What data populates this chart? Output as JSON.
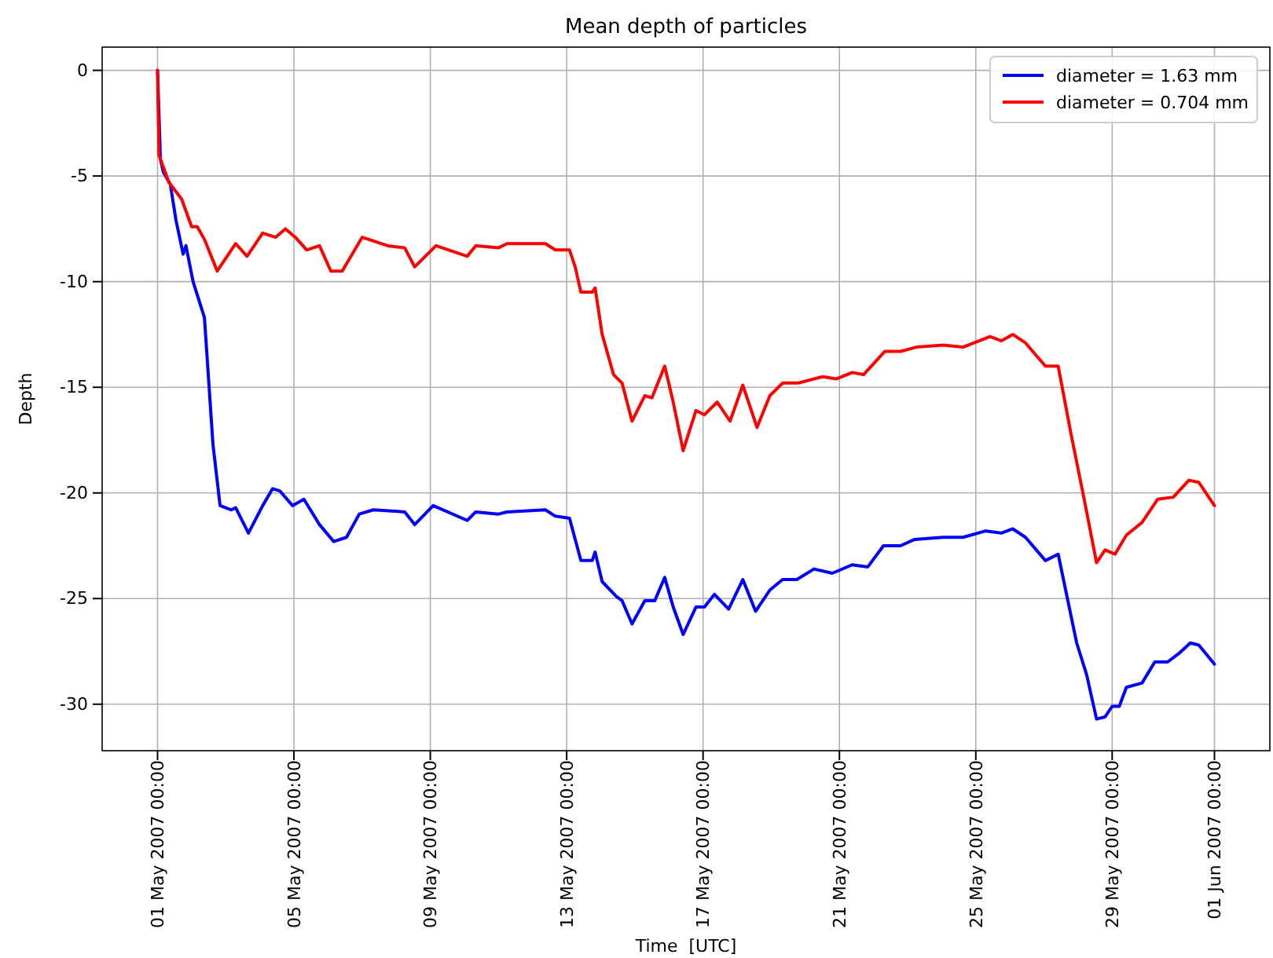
{
  "chart_data": {
    "type": "line",
    "title": "Mean depth of particles",
    "xlabel": "Time  [UTC]",
    "ylabel": "Depth",
    "xlim": [
      "2007-04-29T09:00",
      "2007-06-02T15:00"
    ],
    "ylim": [
      -32.2,
      1.1
    ],
    "xticks": [
      {
        "value": "2007-05-01",
        "label": "01 May 2007 00:00"
      },
      {
        "value": "2007-05-05",
        "label": "05 May 2007 00:00"
      },
      {
        "value": "2007-05-09",
        "label": "09 May 2007 00:00"
      },
      {
        "value": "2007-05-13",
        "label": "13 May 2007 00:00"
      },
      {
        "value": "2007-05-17",
        "label": "17 May 2007 00:00"
      },
      {
        "value": "2007-05-21",
        "label": "21 May 2007 00:00"
      },
      {
        "value": "2007-05-25",
        "label": "25 May 2007 00:00"
      },
      {
        "value": "2007-05-29",
        "label": "29 May 2007 00:00"
      },
      {
        "value": "2007-06-01",
        "label": "01 Jun 2007 00:00"
      }
    ],
    "yticks": [
      0,
      -5,
      -10,
      -15,
      -20,
      -25,
      -30
    ],
    "grid": true,
    "legend": "top right",
    "series": [
      {
        "name": "diameter = 1.63 mm",
        "color": "#0000ff",
        "x": [
          "2007-05-01T00:00",
          "2007-05-01T02:00",
          "2007-05-01T04:00",
          "2007-05-01T09:00",
          "2007-05-01T13:00",
          "2007-05-01T18:00",
          "2007-05-01T20:00",
          "2007-05-02T01:00",
          "2007-05-02T09:00",
          "2007-05-02T15:00",
          "2007-05-02T20:00",
          "2007-05-03T04:00",
          "2007-05-03T07:00",
          "2007-05-03T16:00",
          "2007-05-04T02:00",
          "2007-05-04T09:00",
          "2007-05-04T14:00",
          "2007-05-04T23:00",
          "2007-05-05T07:00",
          "2007-05-05T18:00",
          "2007-05-06T04:00",
          "2007-05-06T13:00",
          "2007-05-06T22:00",
          "2007-05-07T08:00",
          "2007-05-08T06:00",
          "2007-05-08T13:00",
          "2007-05-09T02:00",
          "2007-05-10T02:00",
          "2007-05-10T08:00",
          "2007-05-11T00:00",
          "2007-05-11T06:00",
          "2007-05-12T09:00",
          "2007-05-12T16:00",
          "2007-05-13T02:00",
          "2007-05-13T10:00",
          "2007-05-13T18:00",
          "2007-05-13T20:00",
          "2007-05-14T01:00",
          "2007-05-14T11:00",
          "2007-05-14T15:00",
          "2007-05-14T22:00",
          "2007-05-15T07:00",
          "2007-05-15T14:00",
          "2007-05-15T21:00",
          "2007-05-16T03:00",
          "2007-05-16T10:00",
          "2007-05-16T19:00",
          "2007-05-17T01:00",
          "2007-05-17T08:00",
          "2007-05-17T18:00",
          "2007-05-18T04:00",
          "2007-05-18T13:00",
          "2007-05-18T23:00",
          "2007-05-19T08:00",
          "2007-05-19T18:00",
          "2007-05-20T06:00",
          "2007-05-20T19:00",
          "2007-05-21T09:00",
          "2007-05-21T20:00",
          "2007-05-22T07:00",
          "2007-05-22T19:00",
          "2007-05-23T05:00",
          "2007-05-24T01:00",
          "2007-05-24T15:00",
          "2007-05-25T07:00",
          "2007-05-25T18:00",
          "2007-05-26T02:00",
          "2007-05-26T11:00",
          "2007-05-27T01:00",
          "2007-05-27T10:00",
          "2007-05-27T23:00",
          "2007-05-28T06:00",
          "2007-05-28T13:00",
          "2007-05-28T19:00",
          "2007-05-29T00:00",
          "2007-05-29T05:00",
          "2007-05-29T10:00",
          "2007-05-29T21:00",
          "2007-05-30T06:00",
          "2007-05-30T15:00",
          "2007-05-30T23:00",
          "2007-05-31T07:00",
          "2007-05-31T13:00",
          "2007-06-01T00:00"
        ],
        "values": [
          0,
          -4.2,
          -4.8,
          -5.4,
          -7.1,
          -8.7,
          -8.3,
          -10.0,
          -11.7,
          -17.7,
          -20.6,
          -20.8,
          -20.7,
          -21.9,
          -20.6,
          -19.8,
          -19.9,
          -20.6,
          -20.3,
          -21.5,
          -22.3,
          -22.1,
          -21.0,
          -20.8,
          -20.9,
          -21.5,
          -20.6,
          -21.3,
          -20.9,
          -21.0,
          -20.9,
          -20.8,
          -21.1,
          -21.2,
          -23.2,
          -23.2,
          -22.8,
          -24.2,
          -24.9,
          -25.1,
          -26.2,
          -25.1,
          -25.1,
          -24.0,
          -25.4,
          -26.7,
          -25.4,
          -25.4,
          -24.8,
          -25.5,
          -24.1,
          -25.6,
          -24.6,
          -24.1,
          -24.1,
          -23.6,
          -23.8,
          -23.4,
          -23.5,
          -22.5,
          -22.5,
          -22.2,
          -22.1,
          -22.1,
          -21.8,
          -21.9,
          -21.7,
          -22.1,
          -23.2,
          -22.9,
          -27.1,
          -28.6,
          -30.7,
          -30.6,
          -30.1,
          -30.1,
          -29.2,
          -29.0,
          -28.0,
          -28.0,
          -27.6,
          -27.1,
          -27.2,
          -28.1
        ]
      },
      {
        "name": "diameter = 0.704 mm",
        "color": "#ff0000",
        "x": [
          "2007-05-01T00:00",
          "2007-05-01T01:00",
          "2007-05-01T02:00",
          "2007-05-01T08:00",
          "2007-05-01T17:00",
          "2007-05-02T00:00",
          "2007-05-02T04:00",
          "2007-05-02T09:00",
          "2007-05-02T18:00",
          "2007-05-03T07:00",
          "2007-05-03T15:00",
          "2007-05-04T02:00",
          "2007-05-04T11:00",
          "2007-05-04T18:00",
          "2007-05-05T01:00",
          "2007-05-05T09:00",
          "2007-05-05T18:00",
          "2007-05-06T02:00",
          "2007-05-06T10:00",
          "2007-05-07T00:00",
          "2007-05-07T18:00",
          "2007-05-08T06:00",
          "2007-05-08T13:00",
          "2007-05-09T04:00",
          "2007-05-10T02:00",
          "2007-05-10T08:00",
          "2007-05-11T00:00",
          "2007-05-11T06:00",
          "2007-05-12T09:00",
          "2007-05-12T16:00",
          "2007-05-13T02:00",
          "2007-05-13T06:00",
          "2007-05-13T10:00",
          "2007-05-13T18:00",
          "2007-05-13T20:00",
          "2007-05-14T01:00",
          "2007-05-14T09:00",
          "2007-05-14T15:00",
          "2007-05-14T22:00",
          "2007-05-15T07:00",
          "2007-05-15T12:00",
          "2007-05-15T21:00",
          "2007-05-16T03:00",
          "2007-05-16T10:00",
          "2007-05-16T19:00",
          "2007-05-17T01:00",
          "2007-05-17T10:00",
          "2007-05-17T19:00",
          "2007-05-18T04:00",
          "2007-05-18T14:00",
          "2007-05-18T23:00",
          "2007-05-19T08:00",
          "2007-05-19T19:00",
          "2007-05-20T12:00",
          "2007-05-20T22:00",
          "2007-05-21T09:00",
          "2007-05-21T17:00",
          "2007-05-22T08:00",
          "2007-05-22T19:00",
          "2007-05-23T06:00",
          "2007-05-24T01:00",
          "2007-05-24T15:00",
          "2007-05-25T10:00",
          "2007-05-25T18:00",
          "2007-05-26T02:00",
          "2007-05-26T11:00",
          "2007-05-27T01:00",
          "2007-05-27T10:00",
          "2007-05-27T19:00",
          "2007-05-28T04:00",
          "2007-05-28T13:00",
          "2007-05-28T19:00",
          "2007-05-29T02:00",
          "2007-05-29T10:00",
          "2007-05-29T21:00",
          "2007-05-30T08:00",
          "2007-05-30T19:00",
          "2007-05-31T06:00",
          "2007-05-31T13:00",
          "2007-06-01T00:00"
        ],
        "values": [
          0,
          -4.0,
          -4.2,
          -5.3,
          -6.1,
          -7.4,
          -7.4,
          -8.0,
          -9.5,
          -8.2,
          -8.8,
          -7.7,
          -7.9,
          -7.5,
          -7.9,
          -8.5,
          -8.3,
          -9.5,
          -9.5,
          -7.9,
          -8.3,
          -8.4,
          -9.3,
          -8.3,
          -8.8,
          -8.3,
          -8.4,
          -8.2,
          -8.2,
          -8.5,
          -8.5,
          -9.3,
          -10.5,
          -10.5,
          -10.3,
          -12.5,
          -14.4,
          -14.8,
          -16.6,
          -15.4,
          -15.5,
          -14.0,
          -15.7,
          -18.0,
          -16.1,
          -16.3,
          -15.7,
          -16.6,
          -14.9,
          -16.9,
          -15.4,
          -14.8,
          -14.8,
          -14.5,
          -14.6,
          -14.3,
          -14.4,
          -13.3,
          -13.3,
          -13.1,
          -13.0,
          -13.1,
          -12.6,
          -12.8,
          -12.5,
          -12.9,
          -14.0,
          -14.0,
          -17.2,
          -20.2,
          -23.3,
          -22.7,
          -22.9,
          -22.0,
          -21.4,
          -20.3,
          -20.2,
          -19.4,
          -19.5,
          -20.6
        ]
      }
    ]
  }
}
